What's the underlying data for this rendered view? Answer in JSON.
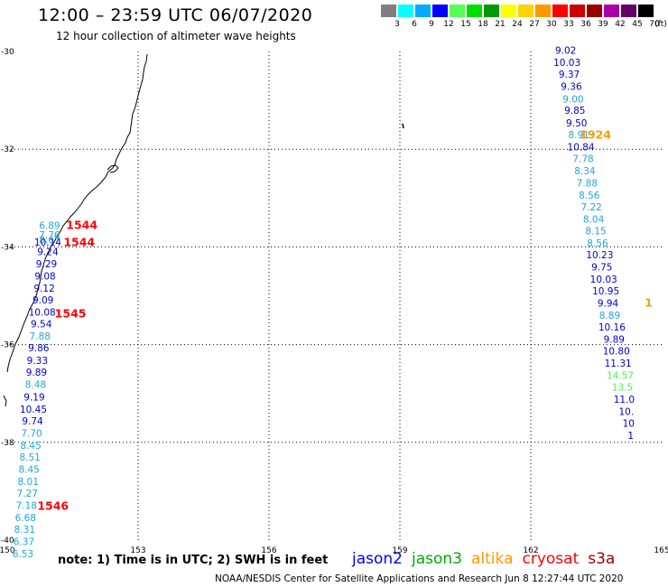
{
  "header": {
    "title": "12:00 – 23:59 UTC 06/07/2020",
    "subtitle": "12 hour collection of altimeter wave heights"
  },
  "colorbar": {
    "unit": "(ft)",
    "segments": [
      {
        "label": "3",
        "color": "#7f7f7f"
      },
      {
        "label": "6",
        "color": "#00ffff"
      },
      {
        "label": "9",
        "color": "#00aaff"
      },
      {
        "label": "12",
        "color": "#0000ff"
      },
      {
        "label": "15",
        "color": "#55ff55"
      },
      {
        "label": "18",
        "color": "#00dd00"
      },
      {
        "label": "21",
        "color": "#009900"
      },
      {
        "label": "24",
        "color": "#ffff00"
      },
      {
        "label": "27",
        "color": "#ffd200"
      },
      {
        "label": "30",
        "color": "#ff9900"
      },
      {
        "label": "33",
        "color": "#ff0000"
      },
      {
        "label": "36",
        "color": "#cc0000"
      },
      {
        "label": "39",
        "color": "#990000"
      },
      {
        "label": "42",
        "color": "#aa00aa"
      },
      {
        "label": "45",
        "color": "#660066"
      },
      {
        "label": "70",
        "color": "#000000"
      }
    ]
  },
  "axes": {
    "lon_ticks": [
      "150",
      "153",
      "156",
      "159",
      "162",
      "165"
    ],
    "lat_ticks": [
      "-30",
      "-32",
      "-34",
      "-36",
      "-38",
      "-40"
    ],
    "lon_range": [
      150,
      165
    ],
    "lat_range": [
      -30,
      -40
    ]
  },
  "colors": {
    "cyan_band": "#22a6d6",
    "blue_band": "#0000cc",
    "green_band": "#55ee55",
    "time_red": "#ff0000",
    "time_orange": "#ff9900"
  },
  "tracks": [
    {
      "name": "west-track",
      "points": [
        {
          "lon": 150.97,
          "lat": -33.63,
          "value": "6.89",
          "band": "cyan"
        },
        {
          "lon": 150.97,
          "lat": -33.83,
          "value": "7.76",
          "band": "cyan"
        },
        {
          "lon": 150.97,
          "lat": -33.93,
          "value": "8.67",
          "band": "cyan"
        },
        {
          "lon": 150.93,
          "lat": -33.97,
          "value": "10.14",
          "band": "blue"
        },
        {
          "lon": 150.93,
          "lat": -34.17,
          "value": "9.24",
          "band": "blue"
        },
        {
          "lon": 150.9,
          "lat": -34.42,
          "value": "9.29",
          "band": "blue"
        },
        {
          "lon": 150.87,
          "lat": -34.67,
          "value": "9.08",
          "band": "blue"
        },
        {
          "lon": 150.85,
          "lat": -34.92,
          "value": "9.12",
          "band": "blue"
        },
        {
          "lon": 150.82,
          "lat": -35.16,
          "value": "9.09",
          "band": "blue"
        },
        {
          "lon": 150.8,
          "lat": -35.41,
          "value": "10.08",
          "band": "blue"
        },
        {
          "lon": 150.78,
          "lat": -35.65,
          "value": "9.54",
          "band": "blue"
        },
        {
          "lon": 150.75,
          "lat": -35.9,
          "value": "7.88",
          "band": "cyan"
        },
        {
          "lon": 150.72,
          "lat": -36.14,
          "value": "9.86",
          "band": "blue"
        },
        {
          "lon": 150.69,
          "lat": -36.4,
          "value": "9.33",
          "band": "blue"
        },
        {
          "lon": 150.67,
          "lat": -36.64,
          "value": "9.89",
          "band": "blue"
        },
        {
          "lon": 150.65,
          "lat": -36.89,
          "value": "8.48",
          "band": "cyan"
        },
        {
          "lon": 150.62,
          "lat": -37.14,
          "value": "9.19",
          "band": "blue"
        },
        {
          "lon": 150.6,
          "lat": -37.39,
          "value": "10.45",
          "band": "blue"
        },
        {
          "lon": 150.58,
          "lat": -37.63,
          "value": "9.74",
          "band": "blue"
        },
        {
          "lon": 150.56,
          "lat": -37.88,
          "value": "7.70",
          "band": "cyan"
        },
        {
          "lon": 150.54,
          "lat": -38.13,
          "value": "8.45",
          "band": "cyan"
        },
        {
          "lon": 150.52,
          "lat": -38.37,
          "value": "8.51",
          "band": "cyan"
        },
        {
          "lon": 150.5,
          "lat": -38.62,
          "value": "8.45",
          "band": "cyan"
        },
        {
          "lon": 150.48,
          "lat": -38.87,
          "value": "8.01",
          "band": "cyan"
        },
        {
          "lon": 150.46,
          "lat": -39.11,
          "value": "7.27",
          "band": "cyan"
        },
        {
          "lon": 150.44,
          "lat": -39.36,
          "value": "7.18",
          "band": "cyan"
        },
        {
          "lon": 150.42,
          "lat": -39.61,
          "value": "6.68",
          "band": "cyan"
        },
        {
          "lon": 150.4,
          "lat": -39.85,
          "value": "8.31",
          "band": "cyan"
        },
        {
          "lon": 150.38,
          "lat": -40.1,
          "value": "6.37",
          "band": "cyan"
        },
        {
          "lon": 150.36,
          "lat": -40.35,
          "value": "6.53",
          "band": "cyan"
        }
      ],
      "times": [
        {
          "lon": 151.71,
          "lat": -33.63,
          "label": "1544",
          "color": "red"
        },
        {
          "lon": 151.65,
          "lat": -33.98,
          "label": "1544",
          "color": "red"
        },
        {
          "lon": 151.45,
          "lat": -35.44,
          "label": "1545",
          "color": "red"
        },
        {
          "lon": 151.05,
          "lat": -39.38,
          "label": "1546",
          "color": "red"
        }
      ]
    },
    {
      "name": "east-track",
      "points": [
        {
          "lon": 162.8,
          "lat": -30.05,
          "value": "9.02",
          "band": "blue"
        },
        {
          "lon": 162.83,
          "lat": -30.3,
          "value": "10.03",
          "band": "blue"
        },
        {
          "lon": 162.88,
          "lat": -30.54,
          "value": "9.37",
          "band": "blue"
        },
        {
          "lon": 162.93,
          "lat": -30.79,
          "value": "9.36",
          "band": "blue"
        },
        {
          "lon": 162.97,
          "lat": -31.04,
          "value": "9.00",
          "band": "cyan"
        },
        {
          "lon": 163.01,
          "lat": -31.28,
          "value": "9.85",
          "band": "blue"
        },
        {
          "lon": 163.05,
          "lat": -31.53,
          "value": "9.50",
          "band": "blue"
        },
        {
          "lon": 163.1,
          "lat": -31.77,
          "value": "8.91",
          "band": "cyan"
        },
        {
          "lon": 163.15,
          "lat": -32.02,
          "value": "10.84",
          "band": "blue"
        },
        {
          "lon": 163.2,
          "lat": -32.26,
          "value": "7.78",
          "band": "cyan"
        },
        {
          "lon": 163.24,
          "lat": -32.51,
          "value": "8.34",
          "band": "cyan"
        },
        {
          "lon": 163.29,
          "lat": -32.76,
          "value": "7.88",
          "band": "cyan"
        },
        {
          "lon": 163.34,
          "lat": -33.01,
          "value": "8.56",
          "band": "cyan"
        },
        {
          "lon": 163.39,
          "lat": -33.25,
          "value": "7.22",
          "band": "cyan"
        },
        {
          "lon": 163.44,
          "lat": -33.5,
          "value": "8.04",
          "band": "cyan"
        },
        {
          "lon": 163.49,
          "lat": -33.74,
          "value": "8.15",
          "band": "cyan"
        },
        {
          "lon": 163.53,
          "lat": -33.99,
          "value": "8.56",
          "band": "cyan"
        },
        {
          "lon": 163.58,
          "lat": -34.23,
          "value": "10.23",
          "band": "blue"
        },
        {
          "lon": 163.63,
          "lat": -34.48,
          "value": "9.75",
          "band": "blue"
        },
        {
          "lon": 163.67,
          "lat": -34.73,
          "value": "10.03",
          "band": "blue"
        },
        {
          "lon": 163.72,
          "lat": -34.97,
          "value": "10.95",
          "band": "blue"
        },
        {
          "lon": 163.77,
          "lat": -35.22,
          "value": "9.94",
          "band": "blue"
        },
        {
          "lon": 163.81,
          "lat": -35.47,
          "value": "8.89",
          "band": "cyan"
        },
        {
          "lon": 163.86,
          "lat": -35.71,
          "value": "10.16",
          "band": "blue"
        },
        {
          "lon": 163.91,
          "lat": -35.96,
          "value": "9.89",
          "band": "blue"
        },
        {
          "lon": 163.96,
          "lat": -36.2,
          "value": "10.80",
          "band": "blue"
        },
        {
          "lon": 164.0,
          "lat": -36.45,
          "value": "11.31",
          "band": "blue"
        },
        {
          "lon": 164.05,
          "lat": -36.7,
          "value": "14.57",
          "band": "green"
        },
        {
          "lon": 164.1,
          "lat": -36.94,
          "value": "13.5",
          "band": "green"
        },
        {
          "lon": 164.14,
          "lat": -37.19,
          "value": "11.0",
          "band": "blue"
        },
        {
          "lon": 164.19,
          "lat": -37.44,
          "value": "10.",
          "band": "blue"
        },
        {
          "lon": 164.24,
          "lat": -37.68,
          "value": "10",
          "band": "blue"
        },
        {
          "lon": 164.29,
          "lat": -37.93,
          "value": "1",
          "band": "blue"
        }
      ],
      "times": [
        {
          "lon": 163.48,
          "lat": -31.78,
          "label": "1924",
          "color": "orange"
        },
        {
          "lon": 164.7,
          "lat": -35.22,
          "label": "1",
          "color": "orange"
        }
      ]
    }
  ],
  "footer": {
    "note": "note:  1) Time is in UTC;  2) SWH is in feet",
    "legend": [
      {
        "label": "jason2",
        "color": "#0000ff"
      },
      {
        "label": "jason3",
        "color": "#00aa00"
      },
      {
        "label": "altika",
        "color": "#ff9900"
      },
      {
        "label": "cryosat",
        "color": "#ff0000"
      },
      {
        "label": "s3a",
        "color": "#990000"
      }
    ],
    "credit": "NOAA/NESDIS Center for Satellite Applications and Research    Jun  8 12:27:44 UTC 2020"
  }
}
